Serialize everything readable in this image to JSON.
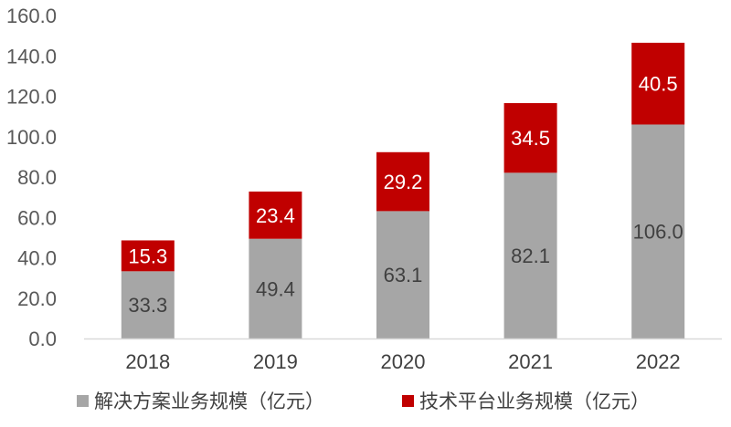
{
  "chart_data": {
    "type": "bar",
    "stacked": true,
    "title": "",
    "xlabel": "",
    "ylabel": "",
    "categories": [
      "2018",
      "2019",
      "2020",
      "2021",
      "2022"
    ],
    "ylim": [
      0,
      160
    ],
    "yticks": [
      "0.0",
      "20.0",
      "40.0",
      "60.0",
      "80.0",
      "100.0",
      "120.0",
      "140.0",
      "160.0"
    ],
    "grid": false,
    "legend_position": "bottom",
    "series": [
      {
        "name": "解决方案业务规模（亿元）",
        "color": "#a6a6a6",
        "label_color": "#404040",
        "values": [
          33.3,
          49.4,
          63.1,
          82.1,
          106.0
        ],
        "labels": [
          "33.3",
          "49.4",
          "63.1",
          "82.1",
          "106.0"
        ]
      },
      {
        "name": "技术平台业务规模（亿元）",
        "color": "#c00000",
        "label_color": "#ffffff",
        "values": [
          15.3,
          23.4,
          29.2,
          34.5,
          40.5
        ],
        "labels": [
          "15.3",
          "23.4",
          "29.2",
          "34.5",
          "40.5"
        ]
      }
    ]
  }
}
